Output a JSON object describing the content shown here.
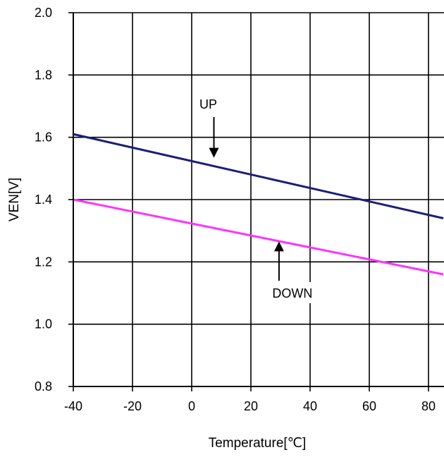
{
  "chart_data": {
    "type": "line",
    "title": "",
    "xlabel": "Temperature[℃]",
    "ylabel": "VEN[V]",
    "xlim": [
      -40,
      85
    ],
    "ylim": [
      0.8,
      2.0
    ],
    "x_ticks": [
      -40,
      -20,
      0,
      20,
      40,
      60,
      80
    ],
    "x_tick_labels": [
      "-40",
      "-20",
      "0",
      "20",
      "40",
      "60",
      "80"
    ],
    "y_ticks": [
      0.8,
      1.0,
      1.2,
      1.4,
      1.6,
      1.8,
      2.0
    ],
    "y_tick_labels": [
      "0.8",
      "1.0",
      "1.2",
      "1.4",
      "1.6",
      "1.8",
      "2.0"
    ],
    "grid": true,
    "legend": "none",
    "series": [
      {
        "name": "UP",
        "color": "#1a1f7a",
        "x": [
          -40,
          85
        ],
        "y": [
          1.61,
          1.34
        ]
      },
      {
        "name": "DOWN",
        "color": "#ff33ff",
        "x": [
          -40,
          85
        ],
        "y": [
          1.4,
          1.16
        ]
      }
    ],
    "annotations": [
      {
        "text": "UP",
        "series": "UP",
        "arrow_target": [
          7.5,
          1.53
        ]
      },
      {
        "text": "DOWN",
        "series": "DOWN",
        "arrow_target": [
          29.5,
          1.27
        ]
      }
    ]
  }
}
